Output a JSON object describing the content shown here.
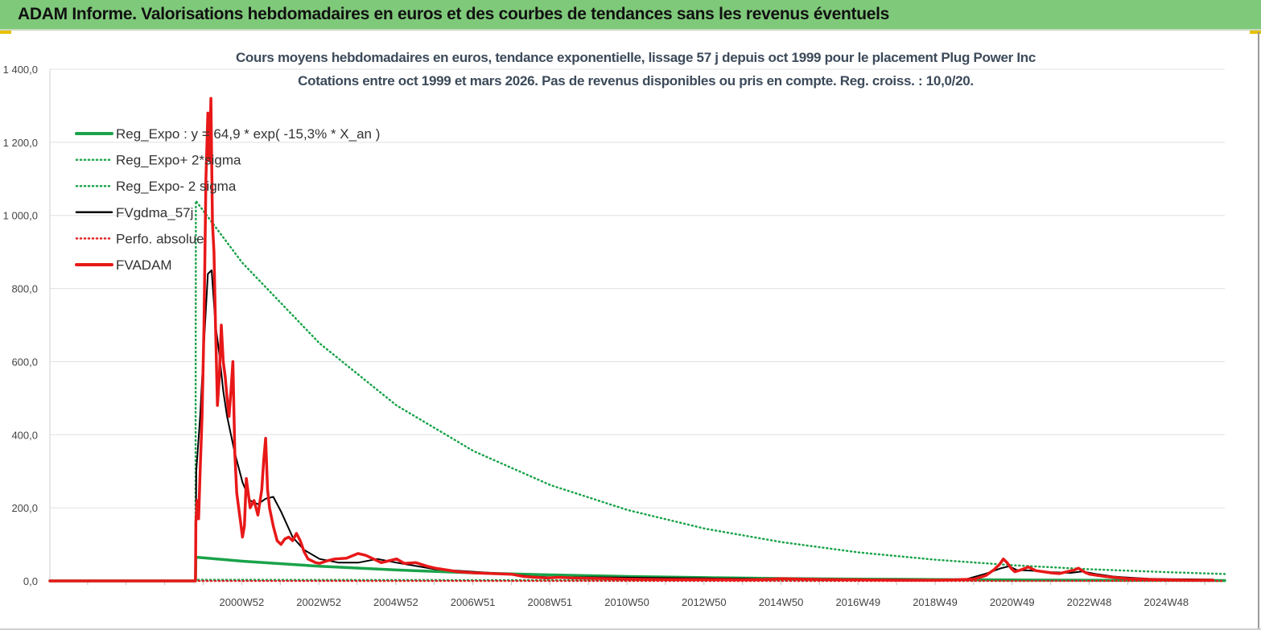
{
  "header": {
    "title": "ADAM Informe. Valorisations hebdomadaires en euros et des courbes de tendances sans les revenus éventuels"
  },
  "chart_data": {
    "type": "line",
    "title": "Cours moyens hebdomadaires en euros, tendance exponentielle, lissage 57 j depuis oct 1999 pour le placement Plug Power Inc",
    "subtitle": "Cotations entre oct 1999 et mars 2026. Pas de revenus disponibles ou pris en compte. Reg. croiss. : 10,0/20.",
    "xlabel": "",
    "ylabel": "",
    "ylim": [
      0,
      1400
    ],
    "y_ticks": [
      "0,0",
      "200,0",
      "400,0",
      "600,0",
      "800,0",
      "1 000,0",
      "1 200,0",
      "1 400,0"
    ],
    "y_tick_values": [
      0,
      200,
      400,
      600,
      800,
      1000,
      1200,
      1400
    ],
    "x_range": [
      1996.0,
      2026.5
    ],
    "x_ticks": [
      "2000W52",
      "2002W52",
      "2004W52",
      "2006W51",
      "2008W51",
      "2010W50",
      "2012W50",
      "2014W50",
      "2016W49",
      "2018W49",
      "2020W49",
      "2022W48",
      "2024W48"
    ],
    "x_tick_values": [
      2000.98,
      2002.98,
      2004.98,
      2006.98,
      2008.98,
      2010.98,
      2012.98,
      2014.98,
      2016.98,
      2018.98,
      2020.98,
      2022.98,
      2024.98
    ],
    "grid": "horizontal",
    "legend_position": "top-left",
    "series": [
      {
        "name": "Reg_Expo : y = 64,9 * exp( -15,3% *  X_an )",
        "color": "#1aa34a",
        "style": "solid-thick",
        "x": [
          1996.0,
          1999.78,
          1999.79,
          2001,
          2003,
          2005,
          2007,
          2009,
          2011,
          2013,
          2015,
          2017,
          2019,
          2021,
          2023,
          2025,
          2026.5
        ],
        "y": [
          0,
          0,
          64.9,
          54,
          40,
          30,
          22,
          16.5,
          12.2,
          9,
          6.7,
          5,
          3.7,
          2.7,
          2,
          1.5,
          1.2
        ]
      },
      {
        "name": "Reg_Expo+ 2*sigma",
        "color": "#1aa34a",
        "style": "dotted",
        "x": [
          1996.0,
          1999.78,
          1999.79,
          2000,
          2001,
          2003,
          2005,
          2007,
          2009,
          2011,
          2013,
          2015,
          2017,
          2019,
          2021,
          2023,
          2025,
          2026.5
        ],
        "y": [
          0,
          0,
          1040,
          1010,
          870,
          650,
          480,
          355,
          262,
          194,
          143,
          106,
          78,
          58,
          43,
          32,
          24,
          19
        ]
      },
      {
        "name": "Reg_Expo- 2 sigma",
        "color": "#1aa34a",
        "style": "dotted",
        "x": [
          1996.0,
          1999.78,
          1999.79,
          2026.5
        ],
        "y": [
          0,
          0,
          3,
          0.1
        ]
      },
      {
        "name": "FVgdma_57j",
        "color": "#000000",
        "style": "solid",
        "x": [
          1996.0,
          1999.78,
          1999.8,
          1999.9,
          2000.0,
          2000.1,
          2000.2,
          2000.3,
          2000.4,
          2000.5,
          2000.6,
          2000.8,
          2001.0,
          2001.2,
          2001.4,
          2001.6,
          2001.8,
          2002.0,
          2002.3,
          2002.6,
          2003,
          2003.5,
          2004,
          2004.5,
          2005,
          2006,
          2007,
          2008,
          2008.5,
          2009,
          2010,
          2011,
          2012,
          2013,
          2014,
          2015,
          2016,
          2017,
          2018,
          2019,
          2019.8,
          2020.3,
          2020.7,
          2020.9,
          2021.1,
          2021.5,
          2022,
          2022.5,
          2022.8,
          2023.2,
          2023.6,
          2024,
          2024.5,
          2025,
          2026.2
        ],
        "y": [
          0,
          0,
          300,
          450,
          650,
          840,
          850,
          700,
          620,
          520,
          450,
          350,
          270,
          220,
          210,
          225,
          230,
          190,
          120,
          85,
          60,
          50,
          50,
          60,
          50,
          32,
          25,
          18,
          12,
          10,
          10,
          9,
          8,
          7,
          6,
          5,
          5,
          4,
          4,
          3,
          5,
          20,
          35,
          40,
          30,
          28,
          24,
          22,
          26,
          18,
          12,
          9,
          6,
          5,
          4
        ]
      },
      {
        "name": "Perfo. absolue",
        "color": "#e02020",
        "style": "dotted",
        "x": [
          1996.0,
          2026.5
        ],
        "y": [
          0,
          0
        ]
      },
      {
        "name": "FVADAM",
        "color": "#e81818",
        "style": "solid-thick",
        "x": [
          1996.0,
          1999.78,
          1999.79,
          1999.82,
          1999.86,
          1999.9,
          1999.95,
          2000.0,
          2000.05,
          2000.1,
          2000.14,
          2000.18,
          2000.22,
          2000.26,
          2000.3,
          2000.35,
          2000.4,
          2000.45,
          2000.5,
          2000.55,
          2000.6,
          2000.65,
          2000.7,
          2000.75,
          2000.8,
          2000.85,
          2000.9,
          2000.95,
          2001.0,
          2001.05,
          2001.1,
          2001.2,
          2001.3,
          2001.4,
          2001.5,
          2001.55,
          2001.6,
          2001.65,
          2001.7,
          2001.8,
          2001.9,
          2002.0,
          2002.1,
          2002.2,
          2002.3,
          2002.4,
          2002.5,
          2002.6,
          2002.7,
          2002.8,
          2002.9,
          2003.0,
          2003.2,
          2003.4,
          2003.7,
          2004.0,
          2004.2,
          2004.4,
          2004.6,
          2004.8,
          2005.0,
          2005.2,
          2005.5,
          2005.8,
          2006.0,
          2006.3,
          2006.6,
          2007.0,
          2007.5,
          2008.0,
          2008.3,
          2008.6,
          2008.9,
          2009.2,
          2009.6,
          2010,
          2011,
          2012,
          2013,
          2014,
          2014.5,
          2015,
          2015.5,
          2016,
          2017,
          2018,
          2019,
          2019.5,
          2020.0,
          2020.3,
          2020.5,
          2020.65,
          2020.75,
          2020.85,
          2020.95,
          2021.05,
          2021.2,
          2021.4,
          2021.6,
          2021.8,
          2022.0,
          2022.2,
          2022.4,
          2022.6,
          2022.7,
          2022.8,
          2022.9,
          2023.0,
          2023.2,
          2023.4,
          2023.6,
          2023.8,
          2024.0,
          2024.3,
          2024.6,
          2025.0,
          2025.5,
          2026.2
        ],
        "y": [
          0,
          0,
          160,
          220,
          170,
          300,
          450,
          700,
          1100,
          1280,
          1150,
          1320,
          980,
          900,
          700,
          480,
          560,
          700,
          600,
          560,
          500,
          450,
          520,
          600,
          350,
          240,
          200,
          160,
          120,
          150,
          280,
          200,
          220,
          180,
          250,
          330,
          390,
          250,
          200,
          150,
          110,
          100,
          115,
          120,
          110,
          130,
          110,
          80,
          60,
          55,
          50,
          48,
          55,
          60,
          62,
          75,
          70,
          60,
          50,
          55,
          60,
          48,
          50,
          40,
          35,
          30,
          25,
          22,
          20,
          18,
          12,
          10,
          8,
          10,
          8,
          7,
          5,
          4,
          4,
          3,
          4,
          6,
          5,
          4,
          3,
          2,
          2,
          3,
          5,
          15,
          30,
          45,
          60,
          50,
          35,
          25,
          30,
          38,
          28,
          25,
          22,
          20,
          25,
          30,
          35,
          28,
          22,
          18,
          15,
          12,
          10,
          8,
          6,
          5,
          4,
          3,
          2,
          2
        ]
      }
    ]
  }
}
